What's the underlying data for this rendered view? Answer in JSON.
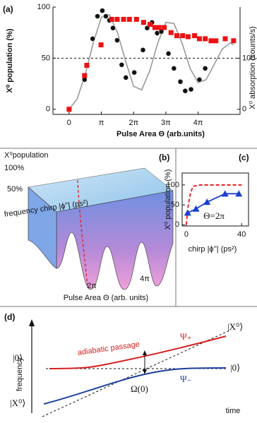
{
  "chart_data": [
    {
      "type": "scatter",
      "label": "(a)",
      "xlabel": "Pulse Area Θ (arb.units)",
      "ylabel": "X⁰ population (%)",
      "y2label": "X⁰ absorption (counts/s)",
      "xlim": [
        -0.5,
        5.3
      ],
      "xticks": [
        0,
        {
          "value": 1,
          "label": "π"
        },
        {
          "value": 2,
          "label": "2π"
        },
        {
          "value": 3,
          "label": "3π"
        },
        {
          "value": 4,
          "label": "4π"
        }
      ],
      "ylim": [
        -5,
        100
      ],
      "yticks": [
        0,
        50,
        100
      ],
      "y2lim": [
        -10,
        200
      ],
      "y2ticks": [
        0,
        100
      ],
      "hline": 50,
      "series": [
        {
          "color": "#999999",
          "linestyle": "solid",
          "axis": "y2",
          "x": [
            0,
            0.25,
            0.5,
            0.75,
            1.0,
            1.25,
            1.5,
            1.75,
            2.0,
            2.25,
            2.5,
            2.75,
            3.0,
            3.25,
            3.5,
            3.75,
            4.0,
            4.25,
            4.5,
            4.75,
            5.0,
            5.1
          ],
          "values": [
            0,
            20,
            68,
            130,
            180,
            185,
            150,
            95,
            45,
            38,
            75,
            130,
            170,
            168,
            130,
            80,
            52,
            58,
            88,
            118,
            130,
            126
          ]
        },
        {
          "color": "#111111",
          "marker": "circle",
          "axis": "y2",
          "x": [
            0,
            0.48,
            0.73,
            0.88,
            1.03,
            1.14,
            1.25,
            1.36,
            1.49,
            1.63,
            1.76,
            2.02,
            2.29,
            2.42,
            2.57,
            2.73,
            2.86,
            3.08,
            3.25,
            3.45,
            3.6,
            3.78,
            4.04,
            4.22
          ],
          "values": [
            0,
            58,
            138,
            182,
            193,
            182,
            174,
            159,
            135,
            87,
            62,
            72,
            116,
            159,
            170,
            149,
            152,
            109,
            80,
            54,
            36,
            39,
            58,
            80
          ]
        },
        {
          "color": "#ee1111",
          "marker": "square",
          "x": [
            0,
            0.48,
            0.55,
            0.99,
            1.32,
            1.49,
            1.69,
            1.87,
            2.09,
            2.31,
            2.51,
            2.66,
            2.79,
            2.95,
            3.16,
            3.34,
            3.52,
            3.69,
            3.89,
            4.04,
            4.22,
            4.4,
            4.55,
            4.84,
            5.1
          ],
          "values": [
            0,
            33,
            43,
            63,
            88,
            88,
            88,
            88,
            88,
            85,
            83,
            80,
            80,
            80,
            75,
            72,
            72,
            71,
            72,
            69,
            69,
            67,
            67,
            69,
            67
          ]
        }
      ]
    },
    {
      "type": "line",
      "label": "(c)",
      "xlabel": "chirp |ϕ''| (ps²)",
      "ylabel": "X⁰ population (%)",
      "annotation": "Θ=2π",
      "xlim": [
        -3,
        45
      ],
      "xticks": [
        0,
        40
      ],
      "ylim": [
        -3,
        130
      ],
      "yticks": [
        0,
        50,
        100
      ],
      "series": [
        {
          "color": "#ee1111",
          "linestyle": "dashed",
          "x": [
            0,
            1,
            3,
            5,
            10,
            40
          ],
          "values": [
            0,
            40,
            80,
            97,
            100,
            100
          ]
        },
        {
          "color": "#1a3fd0",
          "linestyle": "solid",
          "marker": "triangle",
          "x": [
            1,
            7,
            15,
            28,
            38
          ],
          "values": [
            30,
            40,
            57,
            78,
            78
          ]
        }
      ]
    }
  ],
  "panel_b": {
    "label": "(b)",
    "zlabel": "X⁰population",
    "zticks": [
      "100%",
      "50%"
    ],
    "ylabel": "frequency\nchirp |ϕ''| (ps²)",
    "xticks": [
      "2π",
      "4π"
    ],
    "xlabel": "Pulse Area Θ (arb. units)"
  },
  "panel_d": {
    "label": "(d)",
    "ylabel": "frequency",
    "xlabel": "time",
    "state_x_right": "|X⁰⟩",
    "state_0_right": "|0⟩",
    "state_0_left": "|0⟩",
    "state_x_left": "|X⁰⟩",
    "passage": "adiabatic passage",
    "psi_plus": "Ψ₊",
    "psi_minus": "Ψ₋",
    "rabi": "Ω(0)"
  }
}
